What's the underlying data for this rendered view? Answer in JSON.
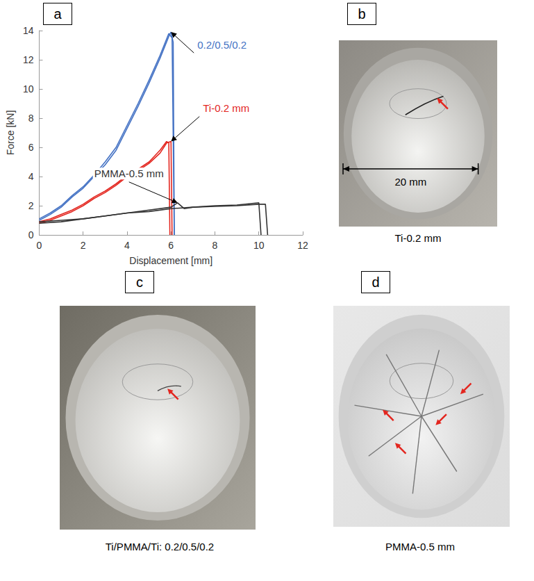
{
  "chart_data": {
    "type": "line",
    "panel": "a",
    "x_label": "Displacement [mm]",
    "y_label": "Force [kN]",
    "xlim": [
      0,
      12
    ],
    "xticks": [
      0,
      2,
      4,
      6,
      8,
      10,
      12
    ],
    "ylim": [
      0,
      14
    ],
    "yticks": [
      0,
      2,
      4,
      6,
      8,
      10,
      12,
      14
    ],
    "grid": false,
    "series": [
      {
        "name": "0.2/0.5/0.2",
        "color": "#4472c4",
        "curves": [
          {
            "x": [
              0,
              0.5,
              1,
              1.5,
              2,
              2.5,
              3,
              3.5,
              4,
              4.5,
              5,
              5.5,
              5.9,
              6.0,
              6.1,
              6.15
            ],
            "values": [
              1.0,
              1.4,
              1.9,
              2.6,
              3.2,
              4.0,
              4.8,
              5.8,
              7.3,
              8.8,
              10.4,
              12.1,
              13.6,
              13.9,
              13.2,
              0
            ]
          },
          {
            "x": [
              0,
              0.5,
              1,
              1.5,
              2,
              2.5,
              3,
              3.5,
              4,
              4.5,
              5,
              5.5,
              5.9,
              6.05,
              6.15
            ],
            "values": [
              1.1,
              1.5,
              2.0,
              2.7,
              3.3,
              4.1,
              5.0,
              6.0,
              7.5,
              9.0,
              10.6,
              12.3,
              13.8,
              13.5,
              0
            ]
          }
        ]
      },
      {
        "name": "Ti-0.2 mm",
        "color": "#e3261f",
        "curves": [
          {
            "x": [
              0,
              0.5,
              1,
              1.5,
              2,
              2.5,
              3,
              3.5,
              4,
              4.5,
              5,
              5.5,
              5.8,
              6.0,
              6.05
            ],
            "values": [
              0.8,
              1.0,
              1.3,
              1.6,
              2.0,
              2.5,
              2.9,
              3.4,
              4.0,
              4.4,
              4.9,
              5.6,
              6.3,
              6.4,
              0
            ]
          },
          {
            "x": [
              0,
              0.5,
              1,
              1.5,
              2,
              2.5,
              3,
              3.5,
              4,
              4.5,
              5,
              5.5,
              5.8,
              5.9,
              5.95
            ],
            "values": [
              0.9,
              1.1,
              1.4,
              1.7,
              2.1,
              2.6,
              3.0,
              3.5,
              4.1,
              4.5,
              5.0,
              5.8,
              6.4,
              6.3,
              0
            ]
          }
        ]
      },
      {
        "name": "PMMA-0.5 mm",
        "color": "#333333",
        "curves": [
          {
            "x": [
              0,
              1,
              2,
              3,
              4,
              5,
              6,
              6.3,
              6.6,
              7,
              8,
              9,
              10,
              10.1
            ],
            "values": [
              0.8,
              0.9,
              1.1,
              1.3,
              1.5,
              1.7,
              1.9,
              2.2,
              1.8,
              1.9,
              2.0,
              2.05,
              2.2,
              0
            ]
          },
          {
            "x": [
              0,
              1,
              2,
              3,
              4,
              5,
              6,
              7,
              8,
              9,
              10,
              10.3,
              10.4
            ],
            "values": [
              0.9,
              1.0,
              1.1,
              1.3,
              1.5,
              1.6,
              1.8,
              1.9,
              1.95,
              2.0,
              2.1,
              2.1,
              0
            ]
          }
        ]
      }
    ]
  },
  "photos": [
    {
      "panel": "b",
      "caption": "Ti-0.2 mm",
      "scale_label": "20 mm"
    },
    {
      "panel": "c",
      "caption": "Ti/PMMA/Ti: 0.2/0.5/0.2"
    },
    {
      "panel": "d",
      "caption": "PMMA-0.5 mm"
    }
  ]
}
